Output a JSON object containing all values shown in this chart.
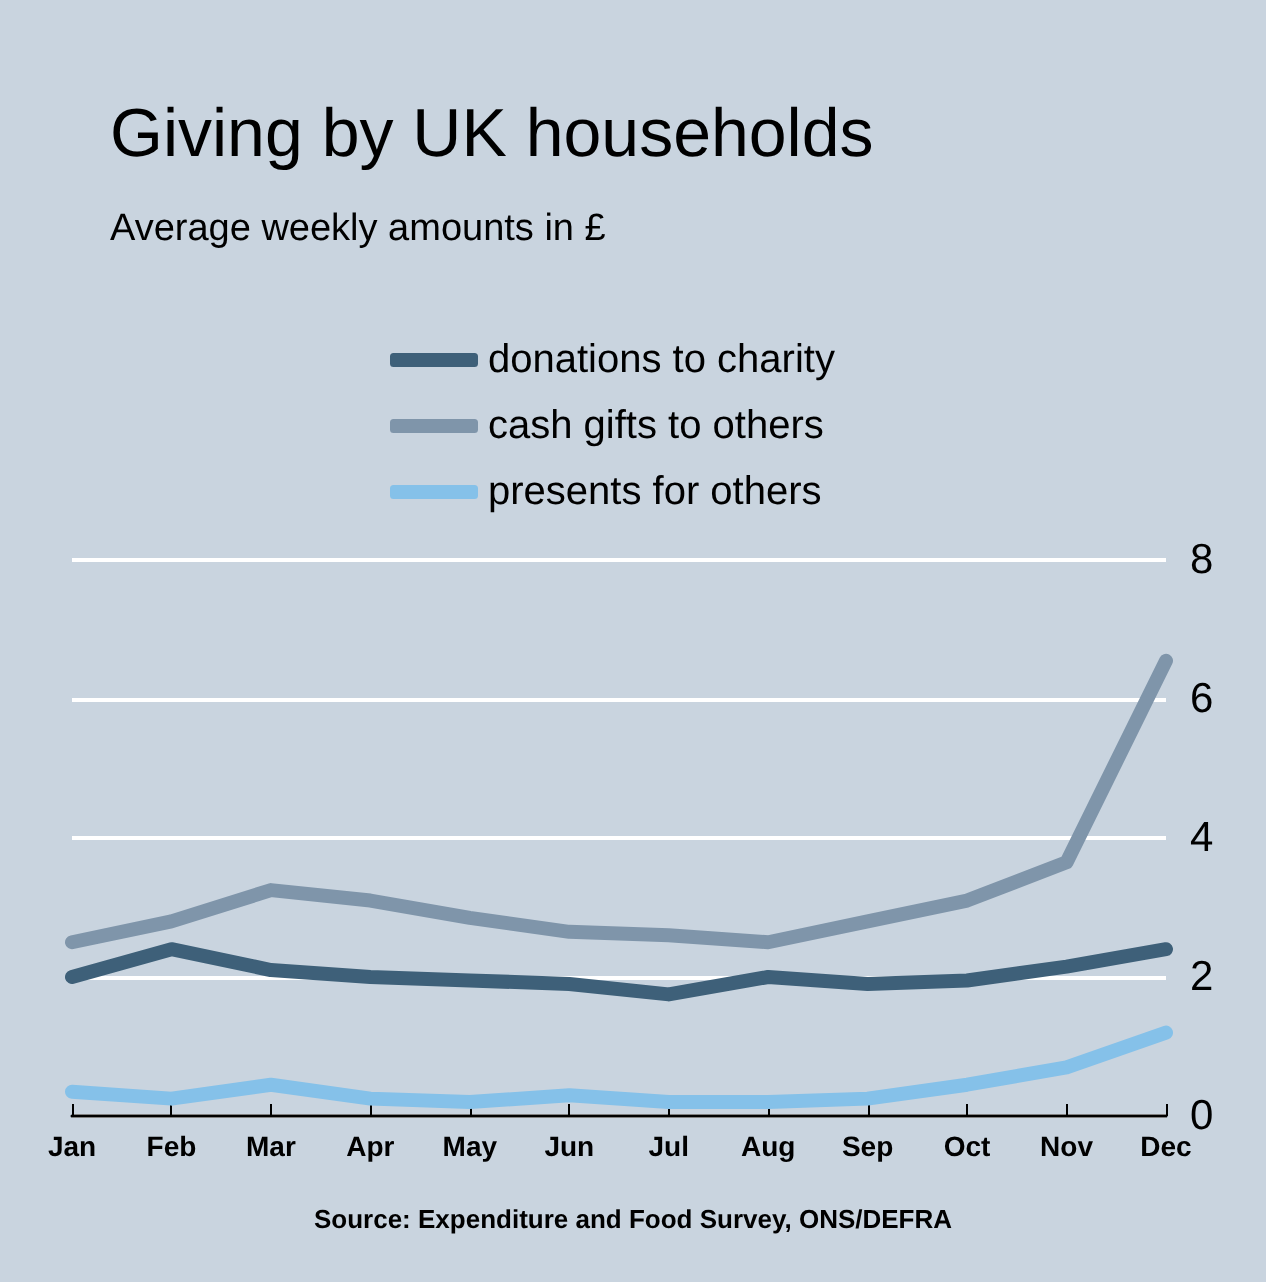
{
  "chart_data": {
    "type": "line",
    "title": "Giving by UK households",
    "subtitle": "Average weekly amounts in £",
    "annotations": [
      "Source: Expenditure and Food Survey, ONS/DEFRA"
    ],
    "categories": [
      "Jan",
      "Feb",
      "Mar",
      "Apr",
      "May",
      "Jun",
      "Jul",
      "Aug",
      "Sep",
      "Oct",
      "Nov",
      "Dec"
    ],
    "series": [
      {
        "name": "donations to charity",
        "color": "#3e6079",
        "values": [
          2.0,
          2.4,
          2.1,
          2.0,
          1.95,
          1.9,
          1.75,
          2.0,
          1.9,
          1.95,
          2.15,
          2.4
        ]
      },
      {
        "name": "cash gifts to others",
        "color": "#7f95aa",
        "values": [
          2.5,
          2.8,
          3.25,
          3.1,
          2.85,
          2.65,
          2.6,
          2.5,
          2.8,
          3.1,
          3.65,
          6.55
        ]
      },
      {
        "name": "presents for others",
        "color": "#85c1e9",
        "values": [
          0.35,
          0.25,
          0.45,
          0.25,
          0.2,
          0.3,
          0.2,
          0.2,
          0.25,
          0.45,
          0.7,
          1.2
        ]
      }
    ],
    "ylim": [
      0,
      8
    ],
    "yticks": [
      0,
      2,
      4,
      6,
      8
    ],
    "grid": "y",
    "legend": "top",
    "line_style": "solid"
  }
}
